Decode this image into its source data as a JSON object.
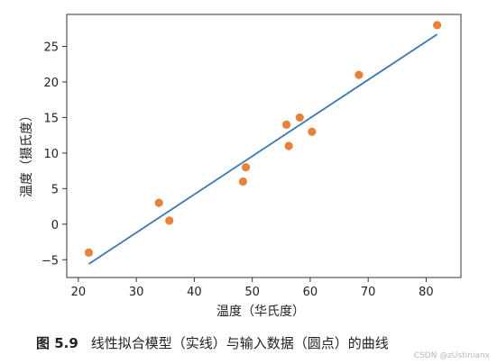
{
  "chart_data": {
    "type": "scatter",
    "xlabel": "温度（华氏度）",
    "ylabel": "温度（摄氏度）",
    "xlim": [
      18,
      86
    ],
    "ylim": [
      -7.5,
      29.5
    ],
    "xticks": [
      20,
      30,
      40,
      50,
      60,
      70,
      80
    ],
    "yticks": [
      -5,
      0,
      5,
      10,
      15,
      20,
      25
    ],
    "grid": false,
    "points": [
      {
        "x": 21.8,
        "y": -4.0
      },
      {
        "x": 33.9,
        "y": 3.0
      },
      {
        "x": 35.7,
        "y": 0.5
      },
      {
        "x": 48.4,
        "y": 6.0
      },
      {
        "x": 48.9,
        "y": 8.0
      },
      {
        "x": 55.9,
        "y": 14.0
      },
      {
        "x": 56.3,
        "y": 11.0
      },
      {
        "x": 58.2,
        "y": 15.0
      },
      {
        "x": 60.3,
        "y": 13.0
      },
      {
        "x": 68.4,
        "y": 21.0
      },
      {
        "x": 81.9,
        "y": 28.0
      }
    ],
    "fit_line": {
      "x": [
        21.8,
        81.9
      ],
      "y": [
        -5.6,
        26.7
      ]
    },
    "colors": {
      "points": "#e8813a",
      "line": "#3b78b0"
    }
  },
  "caption": {
    "figure_number": "图 5.9",
    "text": "线性拟合模型（实线）与输入数据（圆点）的曲线"
  },
  "watermark": "CSDN @zUstinianx"
}
